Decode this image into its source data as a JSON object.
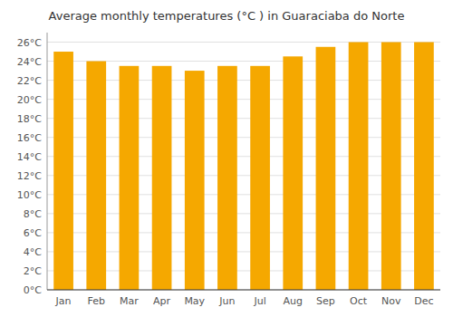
{
  "chart_data": {
    "type": "bar",
    "title": "Average monthly temperatures (°C ) in Guaraciaba do Norte",
    "categories": [
      "Jan",
      "Feb",
      "Mar",
      "Apr",
      "May",
      "Jun",
      "Jul",
      "Aug",
      "Sep",
      "Oct",
      "Nov",
      "Dec"
    ],
    "values": [
      25.0,
      24.0,
      23.5,
      23.5,
      23.0,
      23.5,
      23.5,
      24.5,
      25.5,
      26.0,
      26.0,
      26.0
    ],
    "color": "#F5A800",
    "ylim": [
      0,
      27
    ],
    "yticks": [
      {
        "value": 0,
        "label": "0°C"
      },
      {
        "value": 2,
        "label": "2°C"
      },
      {
        "value": 4,
        "label": "4°C"
      },
      {
        "value": 6,
        "label": "6°C"
      },
      {
        "value": 8,
        "label": "8°C"
      },
      {
        "value": 10,
        "label": "10°C"
      },
      {
        "value": 12,
        "label": "12°C"
      },
      {
        "value": 14,
        "label": "14°C"
      },
      {
        "value": 16,
        "label": "16°C"
      },
      {
        "value": 18,
        "label": "18°C"
      },
      {
        "value": 20,
        "label": "20°C"
      },
      {
        "value": 22,
        "label": "22°C"
      },
      {
        "value": 24,
        "label": "24°C"
      },
      {
        "value": 26,
        "label": "26°C"
      }
    ],
    "grid": true
  }
}
